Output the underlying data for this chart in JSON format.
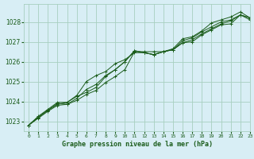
{
  "title": "Graphe pression niveau de la mer (hPa)",
  "xlabel_label": "Graphe pression niveau de la mer (hPa)",
  "bg_color": "#d8eef5",
  "plot_bg_color": "#d8eef5",
  "grid_color": "#a8cfc0",
  "line_color": "#1a5c1a",
  "xlim": [
    -0.5,
    23
  ],
  "ylim": [
    1022.5,
    1028.9
  ],
  "yticks": [
    1023,
    1024,
    1025,
    1026,
    1027,
    1028
  ],
  "xticks": [
    0,
    1,
    2,
    3,
    4,
    5,
    6,
    7,
    8,
    9,
    10,
    11,
    12,
    13,
    14,
    15,
    16,
    17,
    18,
    19,
    20,
    21,
    22,
    23
  ],
  "series": [
    [
      1022.8,
      1023.15,
      1023.5,
      1023.8,
      1023.85,
      1024.05,
      1024.35,
      1024.55,
      1024.95,
      1025.25,
      1025.6,
      1026.5,
      1026.5,
      1026.5,
      1026.5,
      1026.6,
      1026.95,
      1027.0,
      1027.35,
      1027.6,
      1027.85,
      1027.9,
      1028.35,
      1028.2
    ],
    [
      1022.8,
      1023.2,
      1023.55,
      1023.9,
      1023.85,
      1024.15,
      1024.6,
      1024.85,
      1025.3,
      1025.6,
      1026.0,
      1026.55,
      1026.45,
      1026.35,
      1026.5,
      1026.6,
      1026.95,
      1027.1,
      1027.4,
      1027.65,
      1027.9,
      1028.05,
      1028.35,
      1028.1
    ],
    [
      1022.8,
      1023.25,
      1023.6,
      1023.95,
      1023.95,
      1024.25,
      1024.45,
      1024.7,
      1025.25,
      1025.6,
      1026.0,
      1026.55,
      1026.45,
      1026.35,
      1026.5,
      1026.6,
      1027.05,
      1027.2,
      1027.5,
      1027.75,
      1028.0,
      1028.1,
      1028.35,
      1028.2
    ],
    [
      1022.8,
      1023.2,
      1023.55,
      1023.85,
      1023.95,
      1024.3,
      1025.0,
      1025.3,
      1025.5,
      1025.9,
      1026.1,
      1026.45,
      1026.45,
      1026.35,
      1026.5,
      1026.65,
      1027.15,
      1027.25,
      1027.55,
      1027.95,
      1028.1,
      1028.25,
      1028.5,
      1028.2
    ]
  ]
}
